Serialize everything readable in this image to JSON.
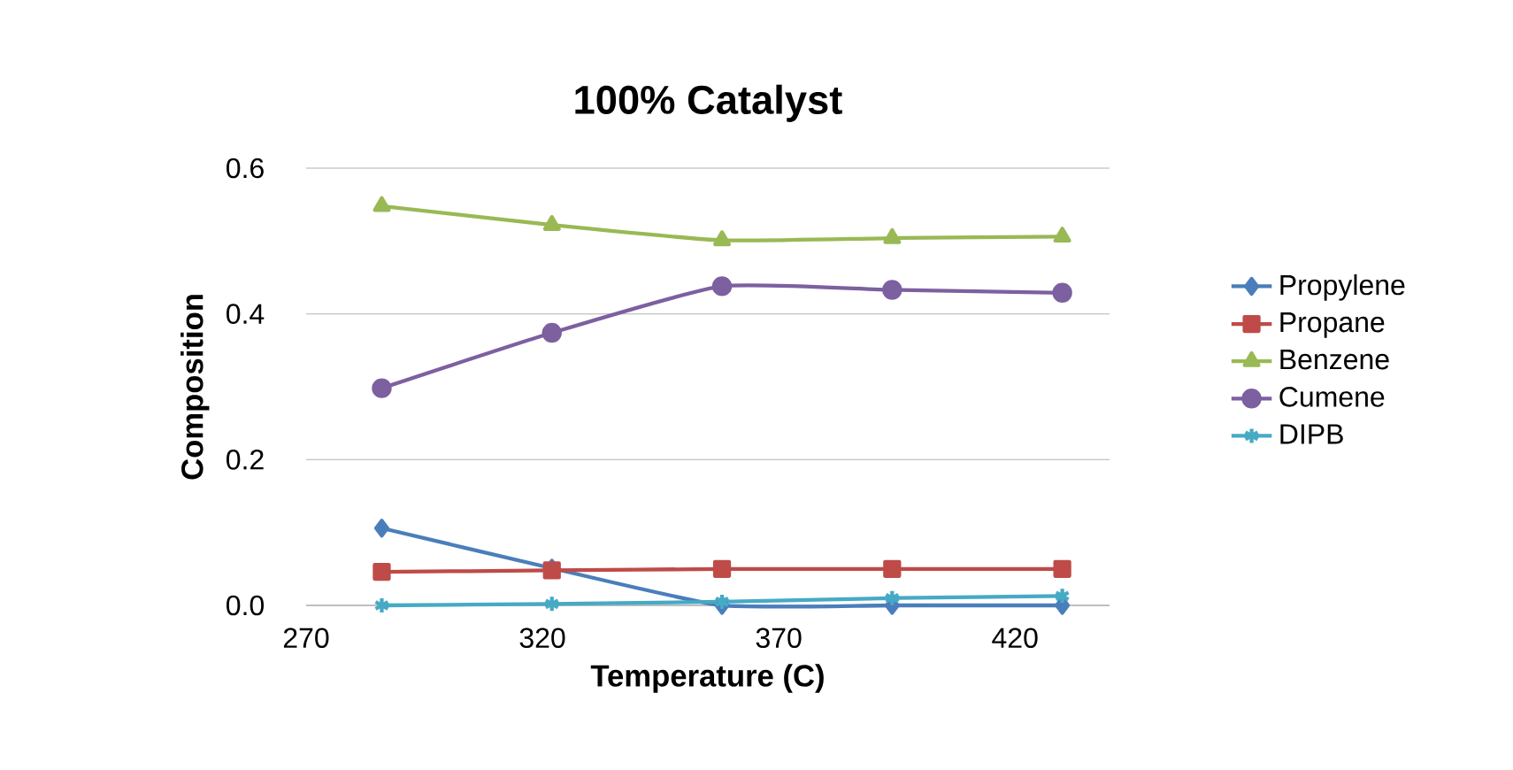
{
  "chart_data": {
    "type": "line",
    "title": "100% Catalyst",
    "xlabel": "Temperature (C)",
    "ylabel": "Composition",
    "x": [
      286,
      322,
      358,
      394,
      430
    ],
    "series": [
      {
        "name": "Propylene",
        "color": "#4a7ebb",
        "marker": "diamond",
        "values": [
          0.106,
          0.051,
          0.0,
          0.0,
          0.0
        ]
      },
      {
        "name": "Propane",
        "color": "#be4b48",
        "marker": "square",
        "values": [
          0.046,
          0.048,
          0.05,
          0.05,
          0.05
        ]
      },
      {
        "name": "Benzene",
        "color": "#98b954",
        "marker": "triangle",
        "values": [
          0.548,
          0.522,
          0.501,
          0.504,
          0.506
        ]
      },
      {
        "name": "Cumene",
        "color": "#7d60a0",
        "marker": "circle",
        "values": [
          0.298,
          0.374,
          0.438,
          0.433,
          0.429
        ]
      },
      {
        "name": "DIPB",
        "color": "#46aac5",
        "marker": "cross",
        "values": [
          0.0,
          0.002,
          0.005,
          0.01,
          0.013
        ]
      }
    ],
    "xlim": [
      270,
      440
    ],
    "xticks": [
      270,
      320,
      370,
      420
    ],
    "ylim": [
      0,
      0.6
    ],
    "yticks": [
      {
        "value": 0,
        "label": "0.0"
      },
      {
        "value": 0.2,
        "label": "0.2"
      },
      {
        "value": 0.4,
        "label": "0.4"
      },
      {
        "value": 0.6,
        "label": "0.6"
      }
    ],
    "grid": "y",
    "legend": "right",
    "line_style": "solid"
  }
}
